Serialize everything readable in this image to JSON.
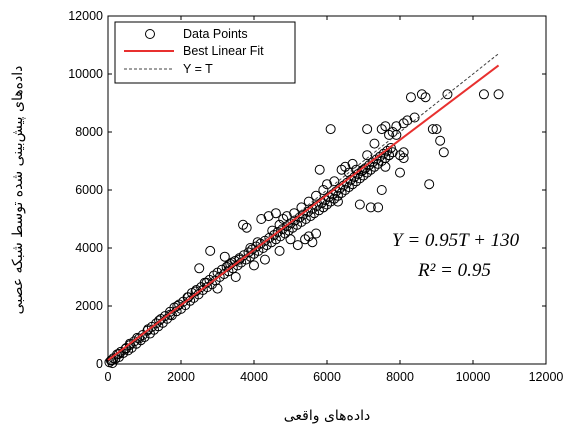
{
  "chart_data": {
    "type": "scatter",
    "xlabel": "داده‌های واقعی",
    "ylabel": "داده‌های پیش‌بینی شده توسط شبکه عصبی",
    "xlim": [
      0,
      12000
    ],
    "ylim": [
      0,
      12000
    ],
    "xticks": [
      "0",
      "2000",
      "4000",
      "6000",
      "8000",
      "10000",
      "12000"
    ],
    "yticks": [
      "0",
      "2000",
      "4000",
      "6000",
      "8000",
      "10000",
      "12000"
    ],
    "legend_position": "top-left",
    "legend": [
      "Data Points",
      "Best Linear Fit",
      "Y = T"
    ],
    "fit": {
      "slope": 0.95,
      "intercept": 130,
      "x_range": [
        0,
        10700
      ]
    },
    "identity": {
      "x_range": [
        0,
        10700
      ]
    },
    "equation_text": "Y = 0.95T + 130",
    "r2_text": "R² = 0.95",
    "colors": {
      "fit": "#e8302f",
      "identity": "#404040",
      "points": "#000000"
    },
    "points": [
      [
        40,
        60
      ],
      [
        80,
        120
      ],
      [
        120,
        30
      ],
      [
        150,
        200
      ],
      [
        200,
        180
      ],
      [
        250,
        330
      ],
      [
        300,
        240
      ],
      [
        350,
        420
      ],
      [
        420,
        380
      ],
      [
        480,
        520
      ],
      [
        550,
        470
      ],
      [
        600,
        650
      ],
      [
        650,
        560
      ],
      [
        720,
        780
      ],
      [
        780,
        700
      ],
      [
        850,
        880
      ],
      [
        900,
        820
      ],
      [
        950,
        1000
      ],
      [
        1000,
        930
      ],
      [
        1080,
        1150
      ],
      [
        1150,
        1050
      ],
      [
        1200,
        1280
      ],
      [
        1260,
        1180
      ],
      [
        1320,
        1400
      ],
      [
        1380,
        1300
      ],
      [
        1450,
        1550
      ],
      [
        1500,
        1420
      ],
      [
        1560,
        1650
      ],
      [
        1620,
        1560
      ],
      [
        1700,
        1800
      ],
      [
        1750,
        1680
      ],
      [
        1820,
        1950
      ],
      [
        1880,
        1820
      ],
      [
        1950,
        2050
      ],
      [
        2000,
        1900
      ],
      [
        2060,
        2150
      ],
      [
        2120,
        2030
      ],
      [
        2180,
        2300
      ],
      [
        2250,
        2180
      ],
      [
        2300,
        2450
      ],
      [
        2350,
        2280
      ],
      [
        2420,
        2550
      ],
      [
        2480,
        2400
      ],
      [
        2550,
        2650
      ],
      [
        2600,
        2550
      ],
      [
        2650,
        2800
      ],
      [
        2720,
        2650
      ],
      [
        2780,
        2900
      ],
      [
        2850,
        2750
      ],
      [
        2900,
        3050
      ],
      [
        2950,
        2880
      ],
      [
        3000,
        3150
      ],
      [
        3060,
        3000
      ],
      [
        3120,
        3250
      ],
      [
        3180,
        3100
      ],
      [
        3250,
        3350
      ],
      [
        3300,
        3200
      ],
      [
        3350,
        3450
      ],
      [
        3420,
        3300
      ],
      [
        3480,
        3550
      ],
      [
        3550,
        3400
      ],
      [
        3600,
        3650
      ],
      [
        3650,
        3500
      ],
      [
        3720,
        3750
      ],
      [
        3780,
        3600
      ],
      [
        3850,
        3850
      ],
      [
        3900,
        3700
      ],
      [
        3950,
        3950
      ],
      [
        4000,
        3800
      ],
      [
        4060,
        4050
      ],
      [
        4120,
        3900
      ],
      [
        4180,
        4150
      ],
      [
        4250,
        4000
      ],
      [
        4300,
        4250
      ],
      [
        4350,
        4100
      ],
      [
        4420,
        4350
      ],
      [
        4480,
        4200
      ],
      [
        4550,
        4450
      ],
      [
        4600,
        4300
      ],
      [
        4650,
        4550
      ],
      [
        4720,
        4400
      ],
      [
        4780,
        4650
      ],
      [
        4850,
        4500
      ],
      [
        4900,
        4750
      ],
      [
        4950,
        4600
      ],
      [
        5000,
        4850
      ],
      [
        5060,
        4700
      ],
      [
        5120,
        4950
      ],
      [
        5180,
        4800
      ],
      [
        5250,
        5050
      ],
      [
        5300,
        4900
      ],
      [
        5350,
        5150
      ],
      [
        5420,
        5000
      ],
      [
        5480,
        5250
      ],
      [
        5550,
        5100
      ],
      [
        5600,
        5350
      ],
      [
        5650,
        5200
      ],
      [
        5720,
        5450
      ],
      [
        5780,
        5300
      ],
      [
        5850,
        5550
      ],
      [
        5900,
        5400
      ],
      [
        5950,
        5650
      ],
      [
        6000,
        5500
      ],
      [
        6050,
        5750
      ],
      [
        6100,
        5600
      ],
      [
        6150,
        5850
      ],
      [
        6200,
        5700
      ],
      [
        6250,
        5950
      ],
      [
        6300,
        5800
      ],
      [
        6350,
        6050
      ],
      [
        6400,
        5900
      ],
      [
        6450,
        6150
      ],
      [
        6500,
        6000
      ],
      [
        6550,
        6250
      ],
      [
        6600,
        6100
      ],
      [
        6650,
        6350
      ],
      [
        6700,
        6200
      ],
      [
        6750,
        6450
      ],
      [
        6800,
        6300
      ],
      [
        6850,
        6550
      ],
      [
        6900,
        6400
      ],
      [
        6950,
        6650
      ],
      [
        7000,
        6500
      ],
      [
        7050,
        6750
      ],
      [
        7100,
        6600
      ],
      [
        7150,
        6850
      ],
      [
        7200,
        6700
      ],
      [
        7250,
        6950
      ],
      [
        7300,
        6800
      ],
      [
        7350,
        7050
      ],
      [
        7400,
        6900
      ],
      [
        7450,
        7150
      ],
      [
        7500,
        7000
      ],
      [
        7550,
        7250
      ],
      [
        7600,
        7100
      ],
      [
        7650,
        7350
      ],
      [
        7700,
        7200
      ],
      [
        7750,
        7450
      ],
      [
        7800,
        7300
      ],
      [
        3700,
        4800
      ],
      [
        3800,
        4700
      ],
      [
        4200,
        5000
      ],
      [
        4400,
        5100
      ],
      [
        4600,
        5200
      ],
      [
        4800,
        5000
      ],
      [
        4300,
        3600
      ],
      [
        5400,
        4300
      ],
      [
        5600,
        4200
      ],
      [
        3200,
        3700
      ],
      [
        2800,
        3900
      ],
      [
        2500,
        3300
      ],
      [
        3500,
        3000
      ],
      [
        3000,
        2600
      ],
      [
        4000,
        3400
      ],
      [
        5000,
        4300
      ],
      [
        5700,
        4500
      ],
      [
        6000,
        6200
      ],
      [
        6100,
        8100
      ],
      [
        6500,
        6800
      ],
      [
        6800,
        6700
      ],
      [
        7000,
        6700
      ],
      [
        7200,
        5400
      ],
      [
        7400,
        5400
      ],
      [
        7500,
        6000
      ],
      [
        7600,
        6800
      ],
      [
        7700,
        7200
      ],
      [
        7800,
        8000
      ],
      [
        7900,
        7900
      ],
      [
        8000,
        7200
      ],
      [
        8100,
        7300
      ],
      [
        8200,
        8400
      ],
      [
        8300,
        9200
      ],
      [
        8400,
        8500
      ],
      [
        8600,
        9300
      ],
      [
        8700,
        9200
      ],
      [
        8800,
        6200
      ],
      [
        8900,
        8100
      ],
      [
        9000,
        8100
      ],
      [
        9100,
        7700
      ],
      [
        9200,
        7300
      ],
      [
        9300,
        9300
      ],
      [
        7100,
        8100
      ],
      [
        7500,
        8100
      ],
      [
        7600,
        8200
      ],
      [
        8000,
        6600
      ],
      [
        8100,
        7100
      ],
      [
        6900,
        5500
      ],
      [
        6300,
        5600
      ],
      [
        5900,
        5400
      ],
      [
        5800,
        6700
      ],
      [
        6400,
        6700
      ],
      [
        6600,
        6600
      ],
      [
        10300,
        9300
      ],
      [
        10700,
        9300
      ],
      [
        5200,
        4100
      ],
      [
        5500,
        4400
      ],
      [
        4700,
        3900
      ],
      [
        4100,
        4200
      ],
      [
        3900,
        4000
      ],
      [
        3600,
        3600
      ],
      [
        3400,
        3500
      ],
      [
        3300,
        3400
      ],
      [
        2700,
        2800
      ],
      [
        2400,
        2500
      ],
      [
        2200,
        2300
      ],
      [
        1900,
        2000
      ],
      [
        1700,
        1700
      ],
      [
        1400,
        1500
      ],
      [
        1100,
        1200
      ],
      [
        800,
        900
      ],
      [
        600,
        700
      ],
      [
        500,
        550
      ],
      [
        300,
        350
      ],
      [
        100,
        120
      ],
      [
        4500,
        4600
      ],
      [
        4700,
        4800
      ],
      [
        4900,
        5100
      ],
      [
        5100,
        5200
      ],
      [
        5300,
        5400
      ],
      [
        5500,
        5600
      ],
      [
        5700,
        5800
      ],
      [
        5900,
        6000
      ],
      [
        6200,
        6300
      ],
      [
        6700,
        6900
      ],
      [
        7100,
        7200
      ],
      [
        7300,
        7600
      ],
      [
        7700,
        7900
      ],
      [
        7900,
        8200
      ],
      [
        8100,
        8300
      ]
    ]
  }
}
